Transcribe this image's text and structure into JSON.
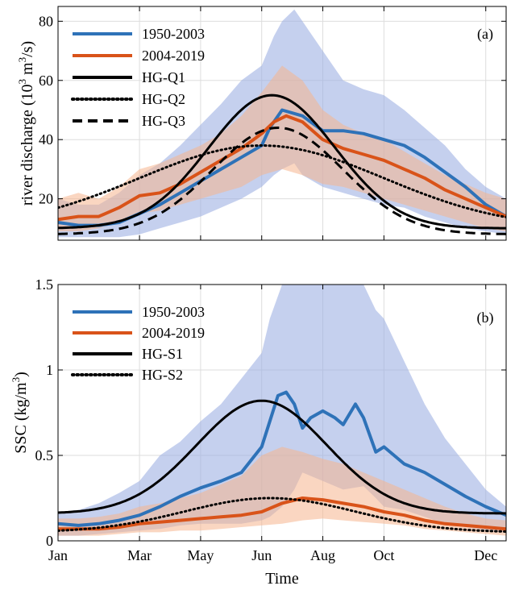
{
  "chart_data": [
    {
      "type": "line",
      "panel_label": "(a)",
      "ylabel_main": "river discharge (10",
      "ylabel_sup1": "3",
      "ylabel_mid": " m",
      "ylabel_sup2": "3",
      "ylabel_end": "/s)",
      "xlim": [
        0,
        11
      ],
      "ylim": [
        6,
        85
      ],
      "yticks": [
        20,
        40,
        60,
        80
      ],
      "grid": true,
      "legend_position": "top-left",
      "series": [
        {
          "name": "1950-2003",
          "color": "#2E72B8",
          "style": "solid",
          "x": [
            0,
            0.5,
            1,
            1.5,
            2,
            2.5,
            3,
            3.5,
            4,
            4.5,
            5,
            5.2,
            5.5,
            6,
            6.5,
            7,
            7.5,
            8,
            8.5,
            9,
            9.5,
            10,
            10.5,
            11
          ],
          "y": [
            12,
            11,
            11,
            12,
            15,
            18,
            22,
            26,
            30,
            34,
            38,
            44,
            50,
            48,
            43,
            43,
            42,
            40,
            38,
            34,
            29,
            24,
            18,
            14
          ]
        },
        {
          "name": "2004-2019",
          "color": "#D95319",
          "style": "solid",
          "x": [
            0,
            0.5,
            1,
            1.5,
            2,
            2.5,
            3,
            3.5,
            4,
            4.5,
            5,
            5.3,
            5.6,
            6,
            6.5,
            7,
            7.5,
            8,
            8.5,
            9,
            9.5,
            10,
            10.5,
            11
          ],
          "y": [
            13,
            14,
            14,
            17,
            21,
            22,
            25,
            29,
            33,
            37,
            42,
            46,
            48,
            46,
            40,
            37,
            35,
            33,
            30,
            27,
            23,
            20,
            17,
            14
          ]
        },
        {
          "name": "HG-Q1",
          "color": "#000000",
          "style": "solid",
          "gauss": {
            "mu": 5.25,
            "sigma": 1.55,
            "amp": 45,
            "base": 10
          }
        },
        {
          "name": "HG-Q2",
          "color": "#000000",
          "style": "dotted",
          "gauss": {
            "mu": 5.0,
            "sigma": 3.0,
            "amp": 28,
            "base": 10
          }
        },
        {
          "name": "HG-Q3",
          "color": "#000000",
          "style": "dashed",
          "gauss": {
            "mu": 5.4,
            "sigma": 1.6,
            "amp": 36,
            "base": 8
          }
        }
      ],
      "bands": [
        {
          "series": "1950-2003",
          "color": "#9FB1E3",
          "opacity": 0.6,
          "x": [
            0,
            0.5,
            1,
            1.5,
            2,
            2.5,
            3,
            3.5,
            4,
            4.5,
            5,
            5.3,
            5.5,
            5.8,
            6,
            6.5,
            7,
            7.5,
            8,
            8.5,
            9,
            9.5,
            10,
            10.5,
            11
          ],
          "lower": [
            7,
            7,
            7,
            7,
            8,
            10,
            12,
            14,
            17,
            20,
            24,
            28,
            30,
            32,
            28,
            24,
            22,
            20,
            18,
            17,
            14,
            12,
            10,
            9,
            8
          ],
          "upper": [
            20,
            18,
            18,
            22,
            28,
            32,
            38,
            45,
            52,
            60,
            65,
            75,
            80,
            84,
            80,
            70,
            60,
            57,
            55,
            50,
            44,
            38,
            30,
            24,
            20
          ]
        },
        {
          "series": "2004-2019",
          "color": "#F6B48E",
          "opacity": 0.55,
          "x": [
            0,
            0.5,
            1,
            1.5,
            2,
            2.5,
            3,
            3.5,
            4,
            4.5,
            5,
            5.5,
            6,
            6.5,
            7,
            7.5,
            8,
            8.5,
            9,
            9.5,
            10,
            10.5,
            11
          ],
          "lower": [
            9,
            9,
            10,
            12,
            15,
            16,
            18,
            20,
            22,
            24,
            28,
            30,
            28,
            25,
            24,
            22,
            20,
            18,
            16,
            14,
            12,
            10,
            9
          ],
          "upper": [
            20,
            22,
            20,
            24,
            30,
            32,
            35,
            38,
            42,
            48,
            56,
            65,
            60,
            50,
            45,
            42,
            40,
            36,
            32,
            28,
            25,
            22,
            20
          ]
        }
      ]
    },
    {
      "type": "line",
      "panel_label": "(b)",
      "ylabel_main": "SSC (kg/m",
      "ylabel_sup1": "3",
      "ylabel_end": ")",
      "xlabel": "Time",
      "xlim": [
        0,
        11
      ],
      "ylim": [
        0,
        1.5
      ],
      "yticks": [
        0,
        0.5,
        1,
        1.5
      ],
      "ytick_labels": [
        "0",
        "0.5",
        "1",
        "1.5"
      ],
      "xticks": [
        0,
        2,
        3.5,
        5,
        6.5,
        8,
        10.5
      ],
      "xtick_labels": [
        "Jan",
        "Mar",
        "May",
        "Jun",
        "Aug",
        "Oct",
        "Dec"
      ],
      "grid": true,
      "legend_position": "top-left",
      "series": [
        {
          "name": "1950-2003",
          "color": "#2E72B8",
          "style": "solid",
          "x": [
            0,
            0.5,
            1,
            1.5,
            2,
            2.5,
            3,
            3.5,
            4,
            4.5,
            5,
            5.2,
            5.4,
            5.6,
            5.8,
            6,
            6.2,
            6.5,
            6.8,
            7,
            7.3,
            7.5,
            7.8,
            8,
            8.5,
            9,
            9.5,
            10,
            10.5,
            11
          ],
          "y": [
            0.1,
            0.09,
            0.1,
            0.12,
            0.15,
            0.2,
            0.26,
            0.31,
            0.35,
            0.4,
            0.55,
            0.7,
            0.85,
            0.87,
            0.8,
            0.66,
            0.72,
            0.76,
            0.72,
            0.68,
            0.8,
            0.72,
            0.52,
            0.55,
            0.45,
            0.4,
            0.33,
            0.26,
            0.2,
            0.15
          ]
        },
        {
          "name": "2004-2019",
          "color": "#D95319",
          "style": "solid",
          "x": [
            0,
            0.5,
            1,
            1.5,
            2,
            2.5,
            3,
            3.5,
            4,
            4.5,
            5,
            5.5,
            6,
            6.5,
            7,
            7.5,
            8,
            8.5,
            9,
            9.5,
            10,
            10.5,
            11
          ],
          "y": [
            0.07,
            0.07,
            0.07,
            0.08,
            0.1,
            0.11,
            0.12,
            0.13,
            0.14,
            0.15,
            0.17,
            0.22,
            0.25,
            0.24,
            0.22,
            0.2,
            0.17,
            0.15,
            0.12,
            0.1,
            0.09,
            0.08,
            0.07
          ]
        },
        {
          "name": "HG-S1",
          "color": "#000000",
          "style": "solid",
          "gauss": {
            "mu": 5.0,
            "sigma": 1.6,
            "amp": 0.66,
            "base": 0.16
          }
        },
        {
          "name": "HG-S2",
          "color": "#000000",
          "style": "dotted",
          "gauss": {
            "mu": 5.2,
            "sigma": 2.1,
            "amp": 0.2,
            "base": 0.05
          }
        }
      ],
      "bands": [
        {
          "series": "1950-2003",
          "color": "#9FB1E3",
          "opacity": 0.6,
          "x": [
            0,
            0.5,
            1,
            1.5,
            2,
            2.5,
            3,
            3.5,
            4,
            4.5,
            5,
            5.2,
            5.5,
            5.8,
            6,
            6.5,
            7,
            7.5,
            7.8,
            8,
            8.5,
            9,
            9.5,
            10,
            10.5,
            11
          ],
          "lower": [
            0.03,
            0.03,
            0.04,
            0.05,
            0.06,
            0.07,
            0.09,
            0.1,
            0.1,
            0.1,
            0.12,
            0.14,
            0.2,
            0.3,
            0.4,
            0.35,
            0.3,
            0.32,
            0.25,
            0.2,
            0.18,
            0.14,
            0.1,
            0.08,
            0.06,
            0.05
          ],
          "upper": [
            0.17,
            0.18,
            0.22,
            0.28,
            0.35,
            0.5,
            0.58,
            0.7,
            0.8,
            0.95,
            1.1,
            1.3,
            1.5,
            1.5,
            1.5,
            1.5,
            1.5,
            1.5,
            1.35,
            1.3,
            1.05,
            0.8,
            0.6,
            0.45,
            0.3,
            0.2
          ]
        },
        {
          "series": "2004-2019",
          "color": "#F6B48E",
          "opacity": 0.55,
          "x": [
            0,
            0.5,
            1,
            1.5,
            2,
            2.5,
            3,
            3.5,
            4,
            4.5,
            5,
            5.5,
            6,
            6.5,
            7,
            7.5,
            8,
            8.5,
            9,
            9.5,
            10,
            10.5,
            11
          ],
          "lower": [
            0.03,
            0.03,
            0.03,
            0.04,
            0.05,
            0.05,
            0.06,
            0.06,
            0.07,
            0.08,
            0.09,
            0.1,
            0.12,
            0.13,
            0.12,
            0.11,
            0.1,
            0.09,
            0.07,
            0.06,
            0.05,
            0.04,
            0.03
          ],
          "upper": [
            0.13,
            0.13,
            0.14,
            0.16,
            0.2,
            0.22,
            0.25,
            0.28,
            0.33,
            0.38,
            0.5,
            0.55,
            0.52,
            0.48,
            0.45,
            0.4,
            0.35,
            0.3,
            0.25,
            0.2,
            0.16,
            0.13,
            0.12
          ]
        }
      ]
    }
  ]
}
